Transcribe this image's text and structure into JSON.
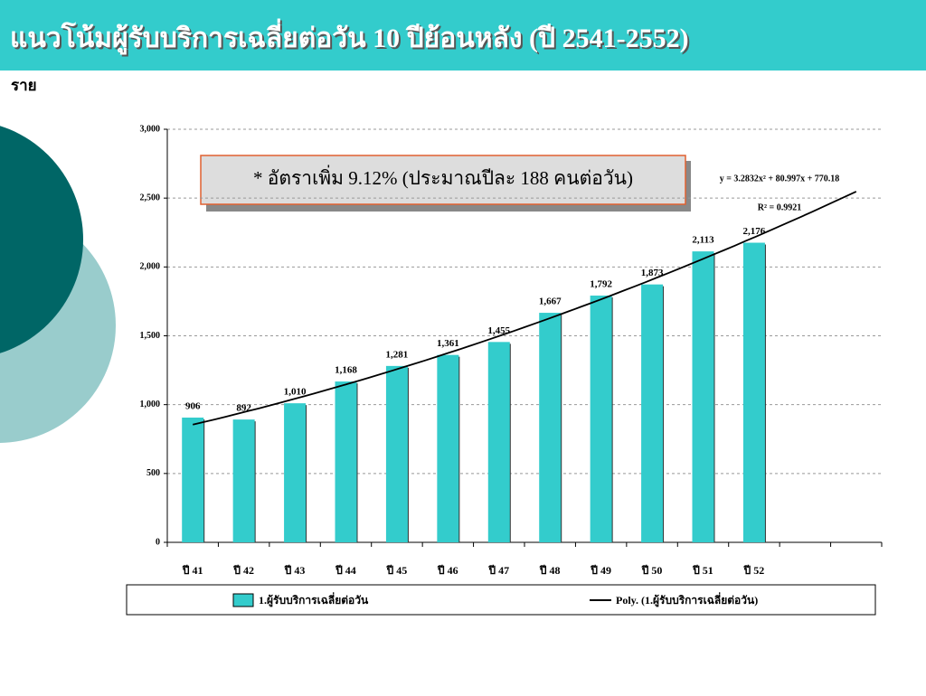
{
  "chart_data": {
    "type": "bar",
    "title": "แนวโน้มผู้รับบริการเฉลี่ยต่อวัน 10 ปีย้อนหลัง (ปี 2541-2552)",
    "y_label": "ราย",
    "annotation": "* อัตราเพิ่ม 9.12% (ประมาณปีละ  188 คนต่อวัน)",
    "categories": [
      "ปี 41",
      "ปี 42",
      "ปี 43",
      "ปี 44",
      "ปี 45",
      "ปี 46",
      "ปี 47",
      "ปี 48",
      "ปี 49",
      "ปี 50",
      "ปี 51",
      "ปี 52",
      null,
      null
    ],
    "series": [
      {
        "name": "1.ผู้รับบริการเฉลี่ยต่อวัน",
        "color": "#33cccc",
        "values": [
          906,
          892,
          1010,
          1168,
          1281,
          1361,
          1455,
          1667,
          1792,
          1873,
          2113,
          2176,
          null,
          null
        ],
        "value_labels": [
          "906",
          "892",
          "1,010",
          "1,168",
          "1,281",
          "1,361",
          "1,455",
          "1,667",
          "1,792",
          "1,873",
          "2,113",
          "2,176",
          null,
          null
        ]
      }
    ],
    "trend": {
      "name": "Poly. (1.ผู้รับบริการเฉลี่ยต่อวัน)",
      "color": "#000000",
      "coefficients": [
        3.2832,
        80.997,
        770.18
      ],
      "equation": "y = 3.2832x² + 80.997x + 770.18",
      "r_squared_label": "R² = 0.9921"
    },
    "ylim": [
      0,
      3000
    ],
    "yticks": [
      0,
      500,
      {
        "value": 1000,
        "label": "1,000"
      },
      {
        "value": 1500,
        "label": "1,500"
      },
      {
        "value": 2000,
        "label": "2,000"
      },
      {
        "value": 2500,
        "label": "2,500"
      },
      {
        "value": 3000,
        "label": "3,000"
      }
    ],
    "grid": true
  }
}
